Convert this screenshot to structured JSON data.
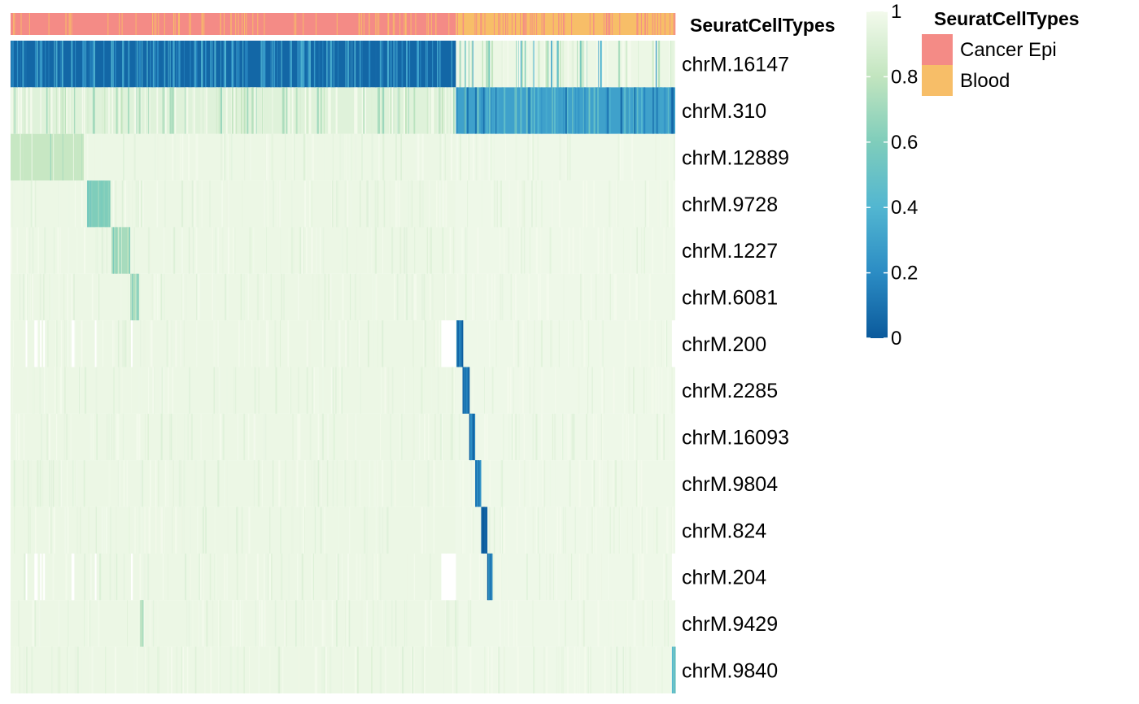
{
  "chart_data": {
    "type": "heatmap",
    "annotation": {
      "name": "SeuratCellTypes",
      "groups": [
        {
          "label": "Cancer Epi",
          "color": "#f48b86",
          "fraction": 0.67
        },
        {
          "label": "Blood",
          "color": "#f7be68",
          "fraction": 0.33
        }
      ]
    },
    "rows": [
      {
        "name": "chrM.16147",
        "cancer_epi_level": 0.05,
        "blood_level": 0.97,
        "feature": "none"
      },
      {
        "name": "chrM.310",
        "cancer_epi_level": 0.92,
        "blood_level": 0.3,
        "feature": "none"
      },
      {
        "name": "chrM.12889",
        "cancer_epi_level": 0.97,
        "blood_level": 0.98,
        "feature": "band",
        "band_start": 0.0,
        "band_end": 0.11,
        "band_level": 0.82
      },
      {
        "name": "chrM.9728",
        "cancer_epi_level": 0.97,
        "blood_level": 0.98,
        "feature": "band",
        "band_start": 0.115,
        "band_end": 0.15,
        "band_level": 0.6
      },
      {
        "name": "chrM.1227",
        "cancer_epi_level": 0.97,
        "blood_level": 0.98,
        "feature": "band",
        "band_start": 0.152,
        "band_end": 0.18,
        "band_level": 0.72
      },
      {
        "name": "chrM.6081",
        "cancer_epi_level": 0.97,
        "blood_level": 0.98,
        "feature": "band",
        "band_start": 0.18,
        "band_end": 0.193,
        "band_level": 0.74
      },
      {
        "name": "chrM.200",
        "cancer_epi_level": 0.97,
        "blood_level": 0.98,
        "feature": "band",
        "band_start": 0.671,
        "band_end": 0.681,
        "band_level": 0.08
      },
      {
        "name": "chrM.2285",
        "cancer_epi_level": 0.97,
        "blood_level": 0.98,
        "feature": "band",
        "band_start": 0.68,
        "band_end": 0.69,
        "band_level": 0.1
      },
      {
        "name": "chrM.16093",
        "cancer_epi_level": 0.97,
        "blood_level": 0.98,
        "feature": "band",
        "band_start": 0.69,
        "band_end": 0.699,
        "band_level": 0.05
      },
      {
        "name": "chrM.9804",
        "cancer_epi_level": 0.97,
        "blood_level": 0.98,
        "feature": "band",
        "band_start": 0.699,
        "band_end": 0.708,
        "band_level": 0.18
      },
      {
        "name": "chrM.824",
        "cancer_epi_level": 0.97,
        "blood_level": 0.98,
        "feature": "band",
        "band_start": 0.708,
        "band_end": 0.717,
        "band_level": 0.05
      },
      {
        "name": "chrM.204",
        "cancer_epi_level": 0.97,
        "blood_level": 0.98,
        "feature": "band",
        "band_start": 0.717,
        "band_end": 0.724,
        "band_level": 0.15
      },
      {
        "name": "chrM.9429",
        "cancer_epi_level": 0.97,
        "blood_level": 0.98,
        "feature": "band",
        "band_start": 0.195,
        "band_end": 0.2,
        "band_level": 0.75
      },
      {
        "name": "chrM.9840",
        "cancer_epi_level": 0.97,
        "blood_level": 0.98,
        "feature": "band",
        "band_start": 0.995,
        "band_end": 1.0,
        "band_level": 0.45
      }
    ],
    "missing_blocks": [
      {
        "row": "chrM.200",
        "start": 0.648,
        "end": 0.67
      },
      {
        "row": "chrM.204",
        "start": 0.648,
        "end": 0.67
      },
      {
        "row": "chrM.200",
        "start": 0.995,
        "end": 1.0
      },
      {
        "row": "chrM.204",
        "start": 0.995,
        "end": 1.0
      }
    ],
    "colorbar": {
      "min": 0,
      "max": 1,
      "ticks": [
        "1",
        "0.8",
        "0.6",
        "0.4",
        "0.2",
        "0"
      ],
      "stops": [
        {
          "value": 0.0,
          "color": "#0b5a9c"
        },
        {
          "value": 0.2,
          "color": "#2b8cc4"
        },
        {
          "value": 0.4,
          "color": "#52b6d1"
        },
        {
          "value": 0.6,
          "color": "#7fcdbb"
        },
        {
          "value": 0.8,
          "color": "#c2e5bf"
        },
        {
          "value": 1.0,
          "color": "#f3faec"
        }
      ]
    },
    "legend": {
      "title": "SeuratCellTypes",
      "position": "top-right",
      "entries": [
        {
          "label": "Cancer Epi",
          "color": "#f48b86"
        },
        {
          "label": "Blood",
          "color": "#f7be68"
        }
      ]
    }
  }
}
